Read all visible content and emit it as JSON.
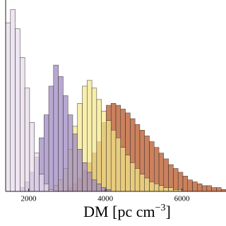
{
  "chart_data": {
    "type": "histogram",
    "x_label": {
      "text": "DM  [pc cm",
      "superscript": "−3",
      "close": "]"
    },
    "bins": [
      1400,
      1525,
      1650,
      1775,
      1900,
      2025,
      2150,
      2275,
      2400,
      2525,
      2650,
      2775,
      2900,
      3025,
      3150,
      3275,
      3400,
      3525,
      3650,
      3775,
      3900,
      4025,
      4150,
      4275,
      4400,
      4525,
      4650,
      4775,
      4900,
      5025,
      5150,
      5275,
      5400,
      5525,
      5650,
      5775,
      5900,
      6025,
      6150,
      6275,
      6400,
      6525,
      6650,
      6775,
      6900,
      7025,
      7150
    ],
    "series": [
      {
        "color": "#b5511e",
        "values": [
          0,
          0,
          0,
          0,
          0,
          0,
          0,
          0,
          0,
          0,
          0,
          0,
          0,
          2,
          4,
          7,
          11,
          15,
          20,
          26,
          36,
          45,
          46,
          45,
          43,
          41,
          38,
          35,
          32,
          29,
          26,
          23,
          20,
          17,
          14,
          12,
          10,
          8,
          6,
          5,
          4,
          3,
          3,
          2,
          2,
          1
        ]
      },
      {
        "color": "#f4e98a",
        "values": [
          0,
          0,
          0,
          0,
          0,
          0,
          0,
          0,
          0,
          0,
          3,
          6,
          12,
          22,
          34,
          46,
          55,
          58,
          54,
          48,
          42,
          37,
          32,
          28,
          23,
          19,
          15,
          12,
          9,
          7,
          5,
          4,
          3,
          2,
          2,
          1,
          1,
          0,
          0,
          0,
          0,
          0,
          0,
          0,
          0,
          0
        ]
      },
      {
        "color": "#9b86c0",
        "values": [
          0,
          0,
          0,
          2,
          5,
          10,
          18,
          28,
          40,
          55,
          66,
          60,
          50,
          40,
          30,
          22,
          15,
          10,
          6,
          4,
          2,
          1,
          0,
          0,
          0,
          0,
          0,
          0,
          0,
          0,
          0,
          0,
          0,
          0,
          0,
          0,
          0,
          0,
          0,
          0,
          0,
          0,
          0,
          0,
          0,
          0
        ]
      },
      {
        "color": "#e6dcec",
        "values": [
          88,
          95,
          85,
          70,
          54,
          36,
          20,
          9,
          4,
          1,
          0,
          0,
          0,
          0,
          0,
          0,
          0,
          0,
          0,
          0,
          0,
          0,
          0,
          0,
          0,
          0,
          0,
          0,
          0,
          0,
          0,
          0,
          0,
          0,
          0,
          0,
          0,
          0,
          0,
          0,
          0,
          0,
          0,
          0,
          0,
          0
        ]
      }
    ],
    "xlim": [
      1400,
      7150
    ],
    "xticks": [
      2000,
      4000,
      6000
    ],
    "ylim": [
      0,
      100
    ]
  }
}
